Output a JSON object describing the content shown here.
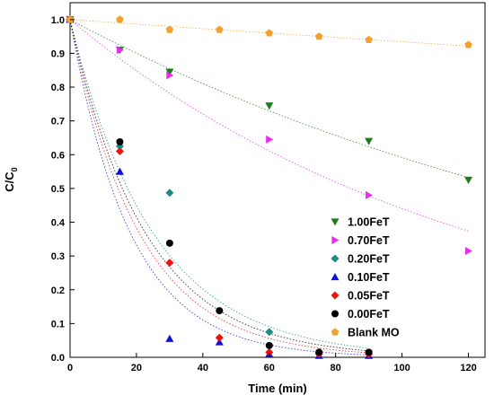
{
  "chart_data": {
    "type": "scatter",
    "xlabel": "Time (min)",
    "ylabel_main": "C/C",
    "ylabel_sub": "0",
    "xlim": [
      0,
      125
    ],
    "ylim": [
      0,
      1.05
    ],
    "x_ticks": [
      0,
      20,
      40,
      60,
      80,
      100,
      120
    ],
    "x_tick_labels": [
      "0",
      "20",
      "40",
      "60",
      "80",
      "100",
      "120"
    ],
    "y_ticks": [
      0,
      0.1,
      0.2,
      0.3,
      0.4,
      0.5,
      0.6,
      0.7,
      0.8,
      0.9,
      1.0
    ],
    "y_tick_labels": [
      "0.0",
      "0.1",
      "0.2",
      "0.3",
      "0.4",
      "0.5",
      "0.6",
      "0.7",
      "0.8",
      "0.9",
      "1.0"
    ],
    "grid": false,
    "legend_position": "right",
    "series": [
      {
        "name": "1.00FeT",
        "marker": "triangle-down",
        "color": "#1e7b1e",
        "x": [
          0,
          15,
          30,
          60,
          90,
          120
        ],
        "y": [
          1.0,
          0.91,
          0.845,
          0.745,
          0.64,
          0.525
        ],
        "fit_k": 0.00525
      },
      {
        "name": "0.70FeT",
        "marker": "triangle-right",
        "color": "#ee2aee",
        "x": [
          0,
          15,
          30,
          60,
          90,
          120
        ],
        "y": [
          1.0,
          0.91,
          0.835,
          0.645,
          0.48,
          0.315
        ],
        "fit_k": 0.0082
      },
      {
        "name": "0.20FeT",
        "marker": "diamond",
        "color": "#1f8a80",
        "x": [
          0,
          15,
          30,
          60,
          75,
          90
        ],
        "y": [
          1.0,
          0.625,
          0.487,
          0.075,
          0.015,
          0.01
        ],
        "fit_k": 0.04
      },
      {
        "name": "0.10FeT",
        "marker": "triangle-up",
        "color": "#1010dd",
        "x": [
          0,
          15,
          30,
          45,
          60,
          75,
          90
        ],
        "y": [
          1.0,
          0.55,
          0.055,
          0.045,
          0.01,
          0.005,
          0.005
        ],
        "fit_k": 0.055
      },
      {
        "name": "0.05FeT",
        "marker": "diamond",
        "color": "#ee1111",
        "x": [
          0,
          15,
          30,
          45,
          60,
          75,
          90
        ],
        "y": [
          1.0,
          0.61,
          0.28,
          0.058,
          0.015,
          0.01,
          0.01
        ],
        "fit_k": 0.048
      },
      {
        "name": "0.00FeT",
        "marker": "circle",
        "color": "#000000",
        "x": [
          0,
          15,
          30,
          45,
          60,
          75,
          90
        ],
        "y": [
          1.0,
          0.638,
          0.338,
          0.138,
          0.035,
          0.015,
          0.015
        ],
        "fit_k": 0.044
      },
      {
        "name": "Blank MO",
        "marker": "pentagon",
        "color": "#f4a030",
        "x": [
          0,
          15,
          30,
          45,
          60,
          75,
          90,
          120
        ],
        "y": [
          1.0,
          1.0,
          0.97,
          0.97,
          0.96,
          0.95,
          0.94,
          0.925
        ],
        "fit_k": 0.00068
      }
    ]
  }
}
